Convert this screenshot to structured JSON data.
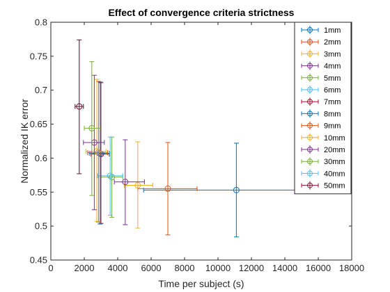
{
  "chart_data": {
    "type": "scatter",
    "title": "Effect of convergence criteria strictness",
    "xlabel": "Time per subject (s)",
    "ylabel": "Normalized IK error",
    "xlim": [
      0,
      18000
    ],
    "ylim": [
      0.45,
      0.8
    ],
    "xticks": [
      "0",
      "2000",
      "4000",
      "6000",
      "8000",
      "10000",
      "12000",
      "14000",
      "16000",
      "18000"
    ],
    "yticks": [
      "0.45",
      "0.5",
      "0.55",
      "0.6",
      "0.65",
      "0.7",
      "0.75",
      "0.8"
    ],
    "grid": false,
    "legend_position": "top-right",
    "error_bars": "horizontal and vertical",
    "series": [
      {
        "name": "1mm",
        "color": "#0072BD",
        "x": 11100,
        "y": 0.553,
        "xerr": [
          5550,
          16150
        ],
        "yerr": [
          0.484,
          0.622
        ]
      },
      {
        "name": "2mm",
        "color": "#D95319",
        "x": 7000,
        "y": 0.555,
        "xerr": [
          5200,
          8750
        ],
        "yerr": [
          0.487,
          0.623
        ]
      },
      {
        "name": "3mm",
        "color": "#EDB120",
        "x": 5200,
        "y": 0.56,
        "xerr": [
          4400,
          6100
        ],
        "yerr": [
          0.497,
          0.624
        ]
      },
      {
        "name": "4mm",
        "color": "#7E2F8E",
        "x": 4450,
        "y": 0.565,
        "xerr": [
          3800,
          5600
        ],
        "yerr": [
          0.502,
          0.627
        ]
      },
      {
        "name": "5mm",
        "color": "#77AC30",
        "x": 3650,
        "y": 0.572,
        "xerr": [
          3000,
          4300
        ],
        "yerr": [
          0.513,
          0.631
        ]
      },
      {
        "name": "6mm",
        "color": "#4DBEEE",
        "x": 3550,
        "y": 0.574,
        "xerr": [
          2800,
          4300
        ],
        "yerr": [
          0.516,
          0.631
        ]
      },
      {
        "name": "7mm",
        "color": "#A2142F",
        "x": 3000,
        "y": 0.606,
        "xerr": [
          2400,
          3500
        ],
        "yerr": [
          0.504,
          0.711
        ]
      },
      {
        "name": "8mm",
        "color": "#0072BD",
        "x": 2950,
        "y": 0.607,
        "xerr": [
          2300,
          3500
        ],
        "yerr": [
          0.503,
          0.712
        ]
      },
      {
        "name": "9mm",
        "color": "#D95319",
        "x": 2850,
        "y": 0.608,
        "xerr": [
          2200,
          3400
        ],
        "yerr": [
          0.506,
          0.713
        ]
      },
      {
        "name": "10mm",
        "color": "#EDB120",
        "x": 2750,
        "y": 0.61,
        "xerr": [
          2100,
          3300
        ],
        "yerr": [
          0.507,
          0.716
        ]
      },
      {
        "name": "20mm",
        "color": "#7E2F8E",
        "x": 2600,
        "y": 0.623,
        "xerr": [
          1950,
          3200
        ],
        "yerr": [
          0.524,
          0.722
        ]
      },
      {
        "name": "30mm",
        "color": "#77AC30",
        "x": 2450,
        "y": 0.644,
        "xerr": [
          2000,
          2950
        ],
        "yerr": [
          0.545,
          0.742
        ]
      },
      {
        "name": "40mm",
        "color": "#4DBEEE",
        "x": 1700,
        "y": 0.676,
        "xerr": [
          1450,
          1950
        ],
        "yerr": [
          0.577,
          0.774
        ]
      },
      {
        "name": "50mm",
        "color": "#7E1734",
        "x": 1700,
        "y": 0.676,
        "xerr": [
          1450,
          1950
        ],
        "yerr": [
          0.577,
          0.774
        ]
      }
    ]
  }
}
